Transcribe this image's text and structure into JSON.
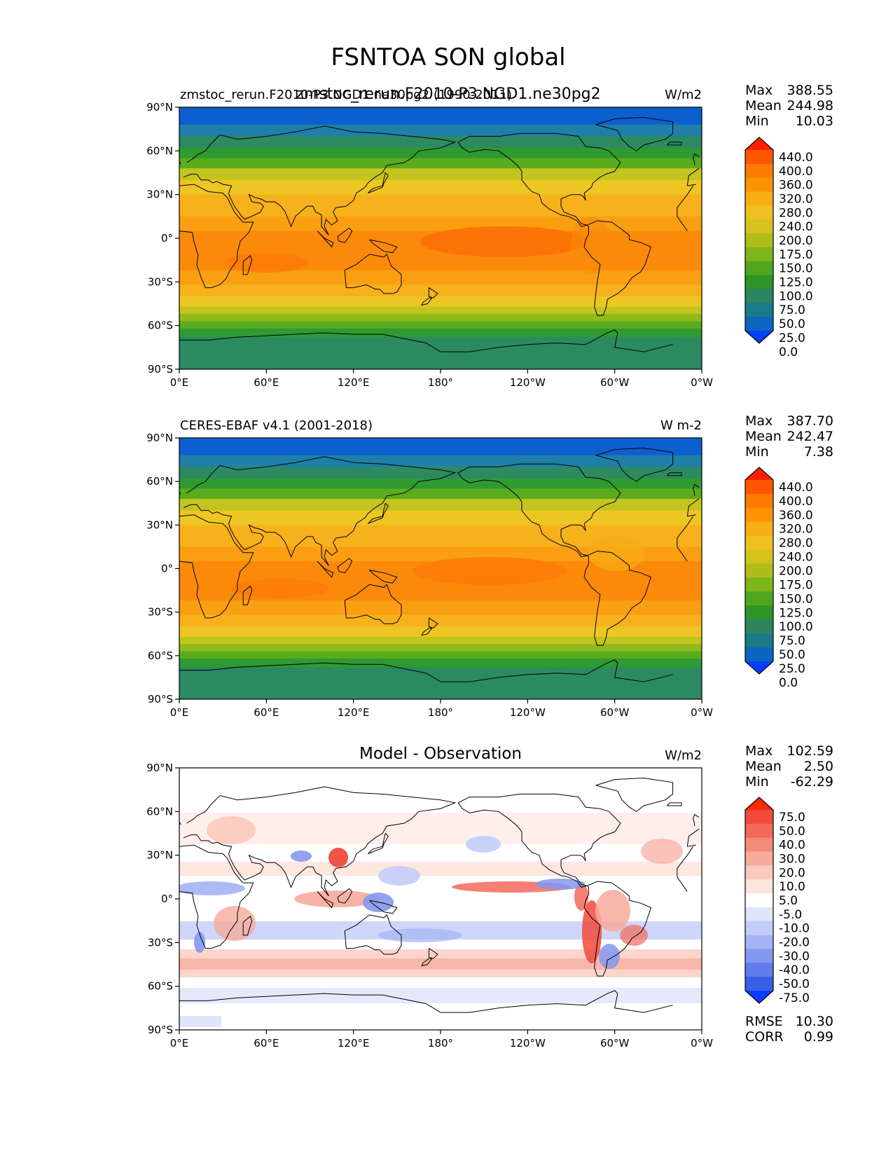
{
  "figure_title": "FSNTOA SON global",
  "axes": {
    "lon_ticks": [
      "0°E",
      "60°E",
      "120°E",
      "180°",
      "120°W",
      "60°W",
      "0°W"
    ],
    "lat_ticks": [
      "90°N",
      "60°N",
      "30°N",
      "0°",
      "30°S",
      "60°S",
      "90°S"
    ]
  },
  "panels": [
    {
      "id": "model",
      "title_left": "zmstoc_rerun.F2010-P3.NGD1.ne30pg2 (1990-2011)",
      "title_overlap": "zmstoc_rerun.F2010-P3.NGD1.ne30pg2",
      "title_center": "",
      "units": "W/m2",
      "stats": {
        "max_label": "Max",
        "max": "388.55",
        "mean_label": "Mean",
        "mean": "244.98",
        "min_label": "Min",
        "min": "10.03"
      },
      "colorbar_ticks": [
        "440.0",
        "400.0",
        "360.0",
        "320.0",
        "280.0",
        "240.0",
        "200.0",
        "175.0",
        "150.0",
        "125.0",
        "100.0",
        "75.0",
        "50.0",
        "25.0",
        "0.0"
      ],
      "colorbar_colors": [
        "#ff2000",
        "#ff5500",
        "#ff7a00",
        "#fb9400",
        "#f7ad14",
        "#f0c020",
        "#d4c21e",
        "#b0bc1a",
        "#7db51a",
        "#4fa61c",
        "#2c9428",
        "#2c8560",
        "#1a7a8a",
        "#0a66c0",
        "#0040ff"
      ],
      "field_colors": [
        "#0d5fd0",
        "#1f7fa8",
        "#2c8a60",
        "#2f9a32",
        "#5aab1e",
        "#8fbb1c",
        "#c4c420",
        "#eec623",
        "#f7b11c",
        "#fb9f12",
        "#fc8a0a",
        "#fb7808"
      ]
    },
    {
      "id": "obs",
      "title_left": "CERES-EBAF v4.1 (2001-2018)",
      "title_center": "",
      "units": "W m-2",
      "stats": {
        "max_label": "Max",
        "max": "387.70",
        "mean_label": "Mean",
        "mean": "242.47",
        "min_label": "Min",
        "min": "7.38"
      },
      "colorbar_ticks": [
        "440.0",
        "400.0",
        "360.0",
        "320.0",
        "280.0",
        "240.0",
        "200.0",
        "175.0",
        "150.0",
        "125.0",
        "100.0",
        "75.0",
        "50.0",
        "25.0",
        "0.0"
      ],
      "colorbar_colors": [
        "#ff2000",
        "#ff5500",
        "#ff7a00",
        "#fb9400",
        "#f7ad14",
        "#f0c020",
        "#d4c21e",
        "#b0bc1a",
        "#7db51a",
        "#4fa61c",
        "#2c9428",
        "#2c8560",
        "#1a7a8a",
        "#0a66c0",
        "#0040ff"
      ],
      "field_colors": [
        "#0d5fd0",
        "#1f7fa8",
        "#2c8a60",
        "#2f9a32",
        "#5aab1e",
        "#8fbb1c",
        "#c4c420",
        "#eec623",
        "#f7b11c",
        "#fb9f12",
        "#fc8a0a",
        "#fb7808"
      ]
    },
    {
      "id": "diff",
      "title_left": "",
      "title_center": "Model - Observation",
      "units": "W/m2",
      "stats": {
        "max_label": "Max",
        "max": "102.59",
        "mean_label": "Mean",
        "mean": "2.50",
        "min_label": "Min",
        "min": "-62.29"
      },
      "extra_stats": {
        "rmse_label": "RMSE",
        "rmse": "10.30",
        "corr_label": "CORR",
        "corr": "0.99"
      },
      "colorbar_ticks": [
        "75.0",
        "50.0",
        "40.0",
        "30.0",
        "20.0",
        "10.0",
        "5.0",
        "-5.0",
        "-10.0",
        "-20.0",
        "-30.0",
        "-40.0",
        "-50.0",
        "-75.0"
      ],
      "colorbar_colors": [
        "#ff2a00",
        "#f04a3a",
        "#f36a5a",
        "#f68a7a",
        "#f8aa9c",
        "#fbcabe",
        "#fde4dc",
        "#ffffff",
        "#dde4fb",
        "#c2cdf8",
        "#a4b4f4",
        "#8498f0",
        "#607ceb",
        "#3a5ee6",
        "#0a3cff"
      ],
      "field_colors": []
    }
  ]
}
